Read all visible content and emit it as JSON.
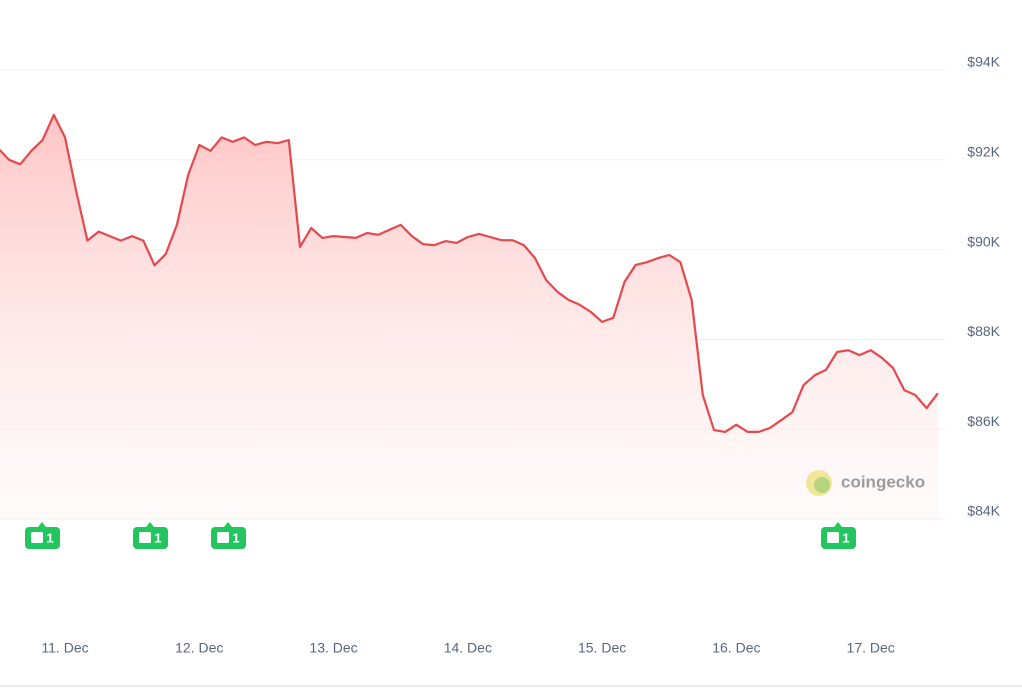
{
  "chart_data": {
    "type": "area-line",
    "categories": [
      null,
      null,
      null,
      null,
      null,
      null,
      "11. Dec",
      null,
      null,
      null,
      null,
      null,
      null,
      null,
      null,
      null,
      null,
      null,
      "12. Dec",
      null,
      null,
      null,
      null,
      null,
      null,
      null,
      null,
      null,
      null,
      null,
      "13. Dec",
      null,
      null,
      null,
      null,
      null,
      null,
      null,
      null,
      null,
      null,
      null,
      "14. Dec",
      null,
      null,
      null,
      null,
      null,
      null,
      null,
      null,
      null,
      null,
      null,
      "15. Dec",
      null,
      null,
      null,
      null,
      null,
      null,
      null,
      null,
      null,
      null,
      null,
      "16. Dec",
      null,
      null,
      null,
      null,
      null,
      null,
      null,
      null,
      null,
      null,
      null,
      "17. Dec",
      null,
      null,
      null,
      null,
      null,
      null
    ],
    "values": [
      92260,
      92000,
      91900,
      92200,
      92440,
      93000,
      92500,
      91300,
      90200,
      90400,
      90300,
      90200,
      90300,
      90200,
      89650,
      89900,
      90550,
      91660,
      92330,
      92200,
      92500,
      92400,
      92500,
      92330,
      92400,
      92370,
      92440,
      90060,
      90480,
      90260,
      90300,
      90280,
      90260,
      90370,
      90330,
      90440,
      90550,
      90300,
      90120,
      90100,
      90190,
      90150,
      90280,
      90350,
      90280,
      90210,
      90210,
      90100,
      89810,
      89320,
      89060,
      88880,
      88770,
      88610,
      88390,
      88480,
      89280,
      89660,
      89720,
      89810,
      89880,
      89720,
      88880,
      86760,
      85980,
      85940,
      86100,
      85940,
      85940,
      86030,
      86200,
      86380,
      86980,
      87200,
      87320,
      87720,
      87760,
      87650,
      87760,
      87590,
      87360,
      86870,
      86760,
      86470,
      86800
    ],
    "color": "#e5484d",
    "ylim": [
      84000,
      94000
    ],
    "yticks": [
      {
        "value": 84000,
        "label": "$84K"
      },
      {
        "value": 86000,
        "label": "$86K"
      },
      {
        "value": 88000,
        "label": "$88K"
      },
      {
        "value": 90000,
        "label": "$90K"
      },
      {
        "value": 92000,
        "label": "$92K"
      },
      {
        "value": 94000,
        "label": "$94K"
      }
    ],
    "grid": true,
    "news_markers": [
      "1",
      "1",
      "1",
      "1"
    ],
    "watermark": "coingecko"
  }
}
